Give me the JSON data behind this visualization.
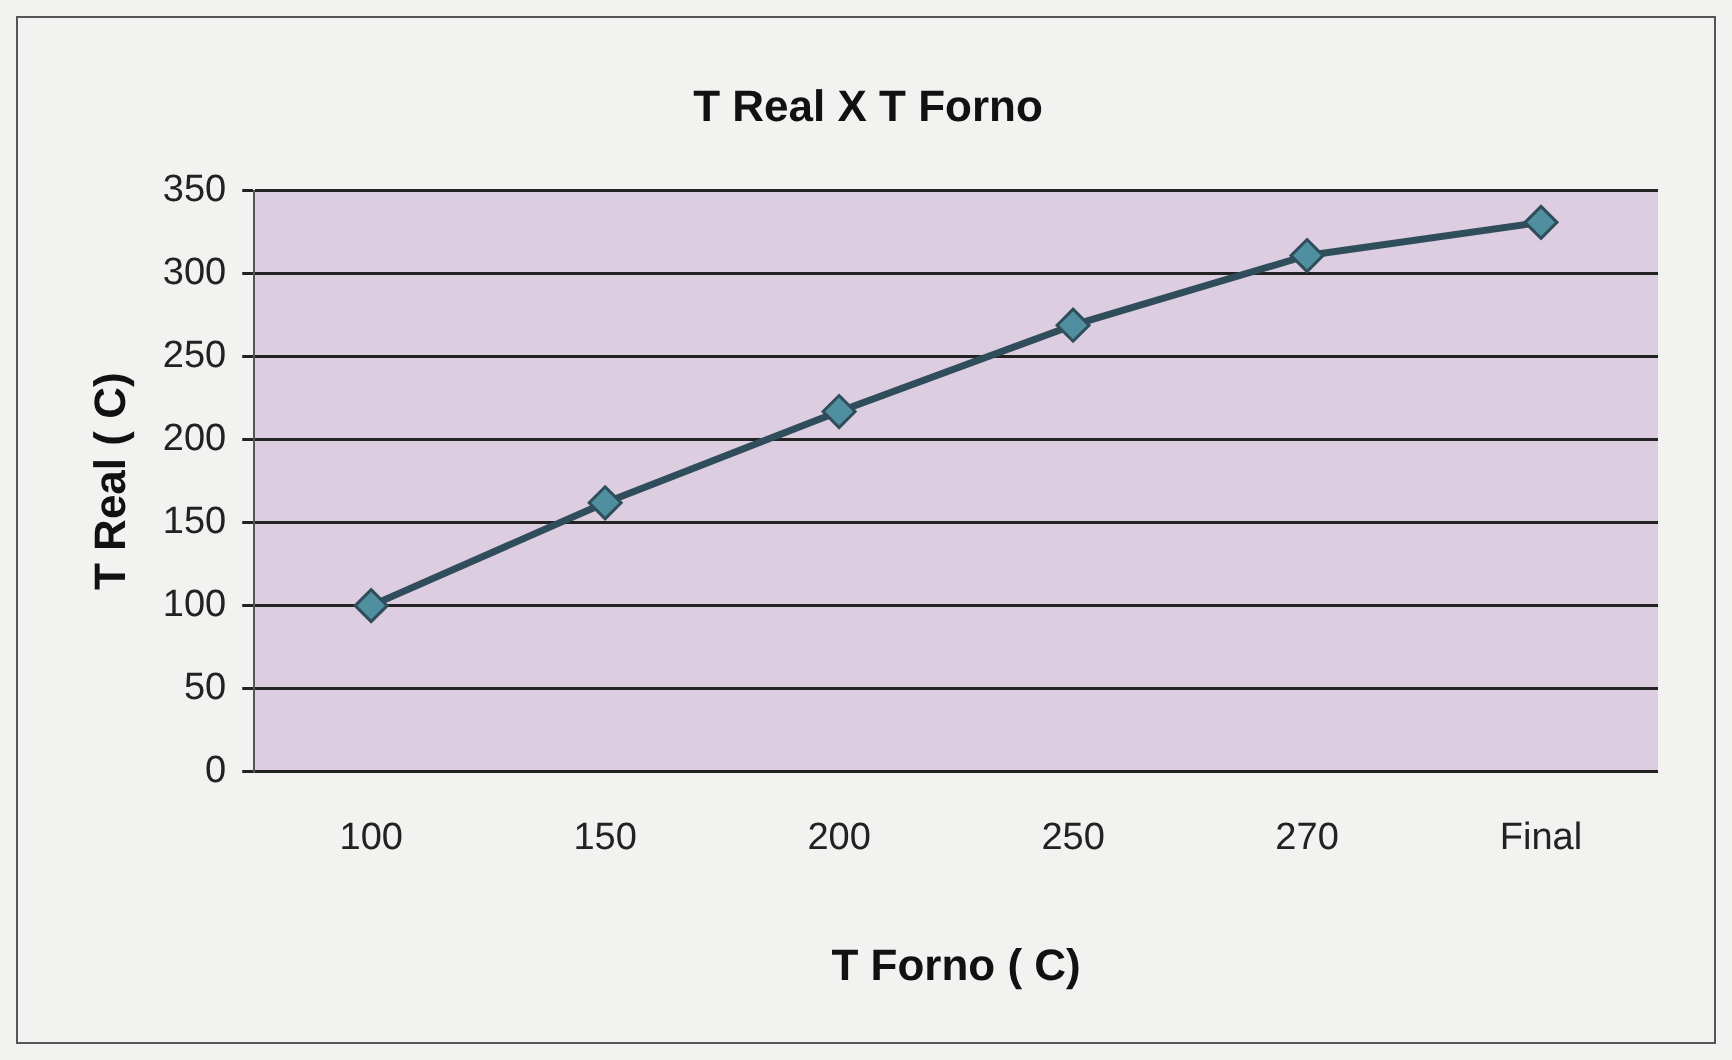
{
  "chart_data": {
    "type": "line",
    "title": "T Real X T Forno",
    "xlabel": "T Forno ( C)",
    "ylabel": "T Real ( C)",
    "categories": [
      "100",
      "150",
      "200",
      "250",
      "270",
      "Final"
    ],
    "series": [
      {
        "color": "#2f4d5a",
        "values": [
          100,
          162,
          217,
          269,
          311,
          331
        ]
      }
    ],
    "ylim": [
      0,
      350
    ],
    "yticks": [
      0,
      50,
      100,
      150,
      200,
      250,
      300,
      350
    ],
    "grid": "y",
    "legend": false,
    "marker": "diamond",
    "line_style": "solid"
  }
}
